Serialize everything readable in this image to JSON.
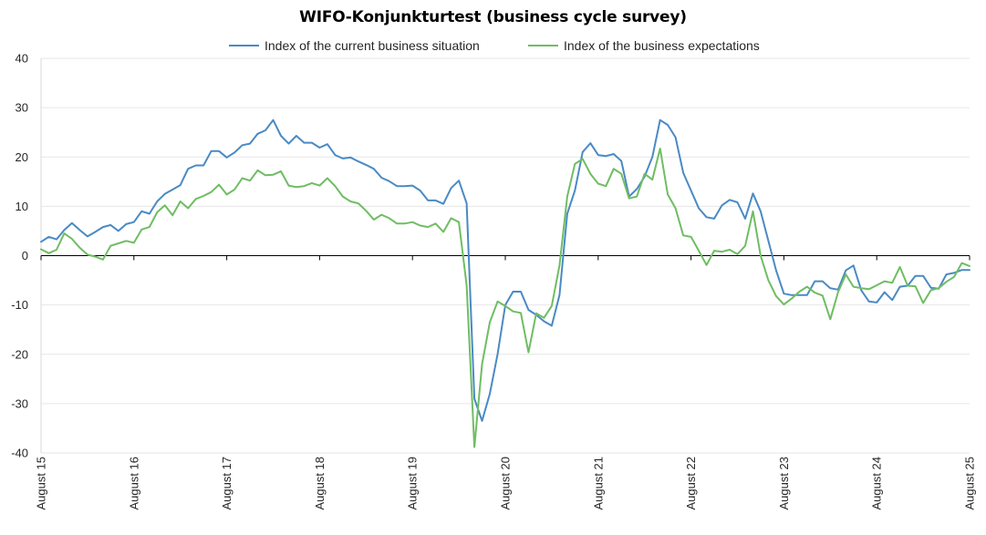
{
  "chart_data": {
    "type": "line",
    "title": "WIFO-Konjunkturtest (business cycle survey)",
    "xlabel": "",
    "ylabel": "",
    "ylim": [
      -40,
      40
    ],
    "yticks": [
      40,
      30,
      20,
      10,
      0,
      -10,
      -20,
      -30,
      -40
    ],
    "x_tick_labels": [
      "August 15",
      "August 16",
      "August 17",
      "August 18",
      "August 19",
      "August 20",
      "August 21",
      "August 22",
      "August 23",
      "August 24",
      "August 25"
    ],
    "x_start": "2015-08",
    "x_end": "2025-08",
    "grid": true,
    "legend_position": "top",
    "series": [
      {
        "name": "Index of the current business situation",
        "color": "#4a8ac4",
        "values": [
          2.8,
          3.8,
          3.3,
          5.2,
          6.6,
          5.2,
          3.9,
          4.8,
          5.8,
          6.2,
          5.0,
          6.4,
          6.8,
          9.0,
          8.5,
          11.0,
          12.5,
          13.4,
          14.3,
          17.6,
          18.3,
          18.3,
          21.2,
          21.2,
          19.9,
          20.9,
          22.4,
          22.7,
          24.7,
          25.4,
          27.5,
          24.3,
          22.7,
          24.3,
          22.9,
          22.9,
          21.9,
          22.6,
          20.4,
          19.7,
          19.9,
          19.1,
          18.4,
          17.6,
          15.8,
          15.1,
          14.1,
          14.1,
          14.2,
          13.2,
          11.2,
          11.2,
          10.5,
          13.7,
          15.2,
          10.6,
          -29.0,
          -33.5,
          -28.0,
          -20.0,
          -10.0,
          -7.3,
          -7.3,
          -11.0,
          -12.0,
          -13.3,
          -14.2,
          -8.0,
          8.5,
          13.2,
          21.0,
          22.8,
          20.4,
          20.2,
          20.6,
          19.2,
          12.0,
          13.5,
          16.0,
          20.0,
          27.5,
          26.5,
          24.0,
          16.8,
          13.2,
          9.6,
          7.8,
          7.5,
          10.2,
          11.3,
          10.8,
          7.5,
          12.6,
          9.0,
          3.0,
          -3.0,
          -7.7,
          -8.0,
          -8.0,
          -8.0,
          -5.2,
          -5.2,
          -6.6,
          -6.9,
          -3.0,
          -2.0,
          -7.0,
          -9.3,
          -9.5,
          -7.4,
          -9.0,
          -6.3,
          -6.1,
          -4.1,
          -4.1,
          -6.5,
          -6.7,
          -3.8,
          -3.5,
          -2.9,
          -2.9
        ]
      },
      {
        "name": "Index of the business expectations",
        "color": "#6fbd63",
        "values": [
          1.3,
          0.5,
          1.2,
          4.5,
          3.4,
          1.6,
          0.2,
          -0.2,
          -0.8,
          2.0,
          2.5,
          3.0,
          2.6,
          5.3,
          5.8,
          8.8,
          10.2,
          8.2,
          11.0,
          9.6,
          11.5,
          12.1,
          12.9,
          14.4,
          12.4,
          13.4,
          15.7,
          15.2,
          17.3,
          16.3,
          16.4,
          17.1,
          14.2,
          13.9,
          14.1,
          14.7,
          14.2,
          15.7,
          14.1,
          12.0,
          11.0,
          10.6,
          9.1,
          7.3,
          8.3,
          7.6,
          6.5,
          6.5,
          6.8,
          6.1,
          5.8,
          6.5,
          4.8,
          7.6,
          6.8,
          -6.0,
          -38.8,
          -22.0,
          -13.5,
          -9.3,
          -10.2,
          -11.3,
          -11.6,
          -19.6,
          -11.7,
          -12.6,
          -10.2,
          -2.0,
          12.0,
          18.6,
          19.6,
          16.6,
          14.6,
          14.1,
          17.6,
          16.6,
          11.6,
          12.0,
          16.6,
          15.4,
          21.7,
          12.4,
          9.6,
          4.1,
          3.8,
          1.0,
          -1.9,
          1.0,
          0.8,
          1.2,
          0.3,
          2.0,
          9.0,
          0.0,
          -5.0,
          -8.2,
          -9.9,
          -8.7,
          -7.3,
          -6.3,
          -7.5,
          -8.1,
          -12.9,
          -7.4,
          -3.8,
          -6.3,
          -6.6,
          -6.8,
          -6.0,
          -5.2,
          -5.5,
          -2.3,
          -6.1,
          -6.2,
          -9.6,
          -7.0,
          -6.6,
          -5.3,
          -4.3,
          -1.5,
          -2.1
        ]
      }
    ]
  }
}
